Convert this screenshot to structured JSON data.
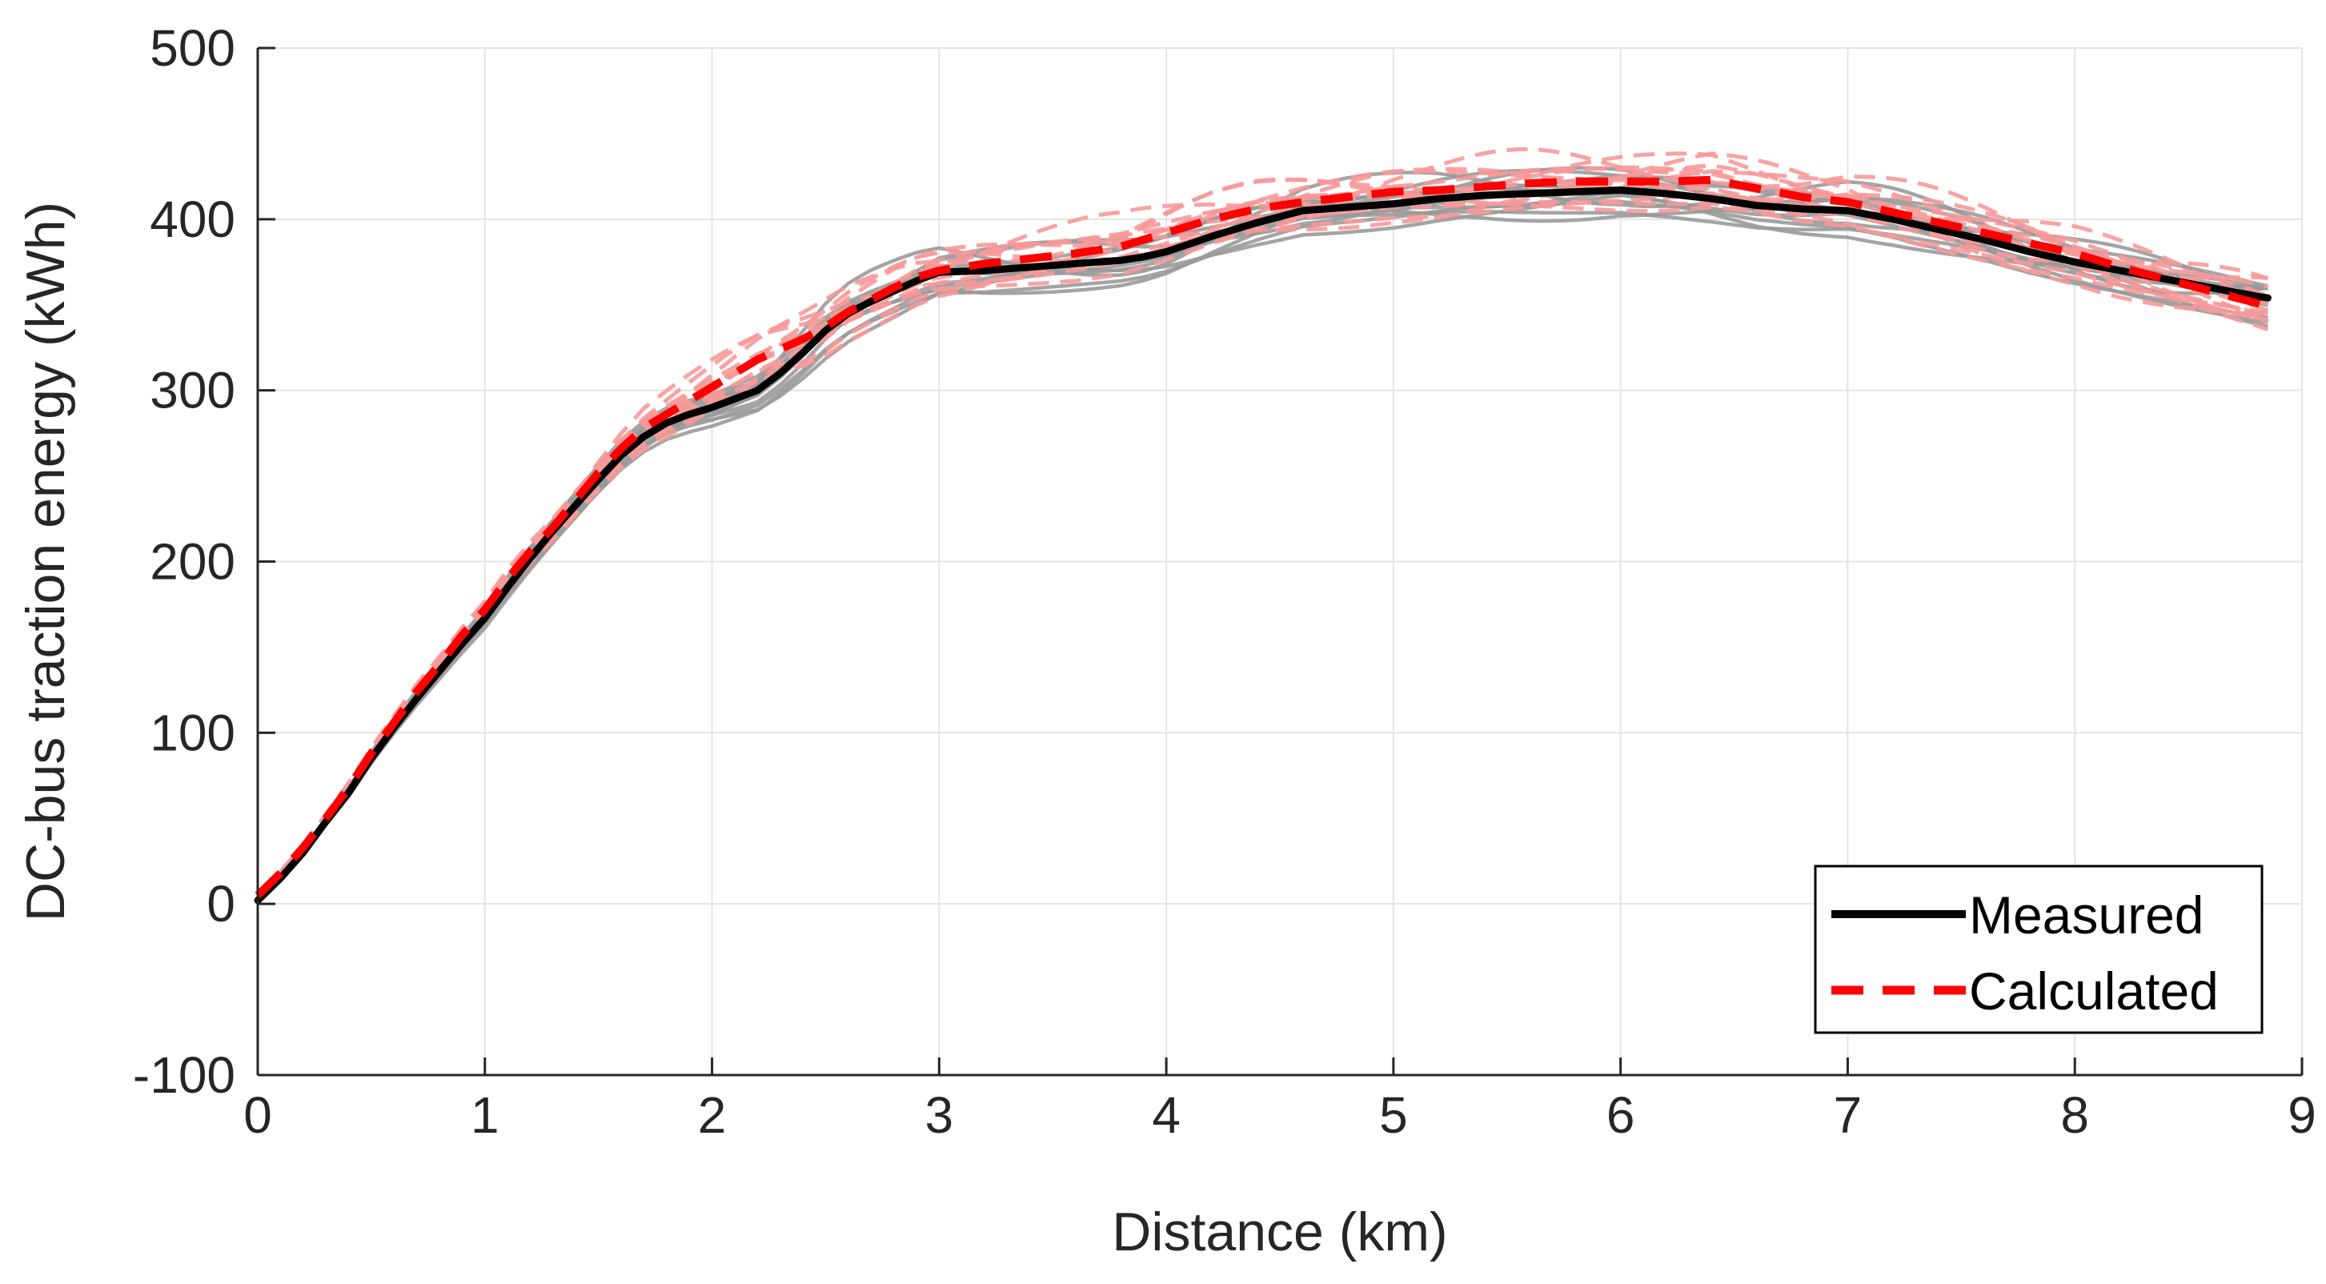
{
  "chart_data": {
    "type": "line",
    "xlabel": "Distance (km)",
    "ylabel": "DC-bus traction energy (kWh)",
    "xlim": [
      0,
      9
    ],
    "ylim": [
      -100,
      500
    ],
    "xticks": [
      0,
      1,
      2,
      3,
      4,
      5,
      6,
      7,
      8,
      9
    ],
    "yticks": [
      -100,
      0,
      100,
      200,
      300,
      400,
      500
    ],
    "grid": true,
    "legend_position": "bottom-right",
    "colors": {
      "measured": "#000000",
      "calculated": "#ff0000",
      "measured_runs": "#9a9a9a",
      "calculated_runs": "#f79999",
      "grid": "#e3e3e3",
      "axis": "#262626"
    },
    "series": [
      {
        "name": "Measured",
        "style": "solid",
        "x": [
          0,
          0.1,
          0.2,
          0.3,
          0.4,
          0.5,
          0.6,
          0.7,
          0.8,
          0.9,
          1.0,
          1.1,
          1.2,
          1.3,
          1.4,
          1.5,
          1.6,
          1.7,
          1.8,
          1.9,
          2.0,
          2.1,
          2.2,
          2.3,
          2.4,
          2.5,
          2.6,
          2.7,
          2.8,
          2.9,
          3.0,
          3.2,
          3.4,
          3.6,
          3.8,
          3.9,
          4.0,
          4.2,
          4.4,
          4.6,
          4.8,
          5.0,
          5.2,
          5.4,
          5.6,
          5.8,
          6.0,
          6.2,
          6.4,
          6.6,
          6.8,
          7.0,
          7.2,
          7.4,
          7.6,
          7.8,
          8.0,
          8.2,
          8.4,
          8.6,
          8.8,
          8.85
        ],
        "y": [
          2,
          15,
          30,
          48,
          65,
          85,
          103,
          120,
          136,
          152,
          167,
          185,
          202,
          218,
          233,
          248,
          262,
          273,
          281,
          286,
          290,
          295,
          300,
          310,
          322,
          335,
          345,
          352,
          358,
          364,
          369,
          370,
          372,
          374,
          376,
          378,
          381,
          390,
          398,
          405,
          407,
          409,
          412,
          414,
          415,
          416,
          417,
          415,
          412,
          408,
          406,
          405,
          400,
          394,
          388,
          381,
          375,
          370,
          365,
          360,
          355,
          354
        ]
      },
      {
        "name": "Calculated",
        "style": "dashed",
        "x": [
          0,
          0.1,
          0.2,
          0.3,
          0.4,
          0.5,
          0.6,
          0.7,
          0.8,
          0.9,
          1.0,
          1.1,
          1.2,
          1.3,
          1.4,
          1.5,
          1.6,
          1.7,
          1.8,
          1.9,
          2.0,
          2.1,
          2.2,
          2.3,
          2.4,
          2.5,
          2.6,
          2.7,
          2.8,
          2.9,
          3.0,
          3.2,
          3.4,
          3.6,
          3.8,
          4.0,
          4.2,
          4.4,
          4.6,
          4.8,
          5.0,
          5.2,
          5.4,
          5.6,
          5.8,
          6.0,
          6.2,
          6.4,
          6.6,
          6.8,
          7.0,
          7.2,
          7.4,
          7.6,
          7.8,
          8.0,
          8.2,
          8.4,
          8.6,
          8.8,
          8.85
        ],
        "y": [
          5,
          18,
          33,
          50,
          68,
          88,
          106,
          124,
          140,
          157,
          172,
          190,
          206,
          220,
          236,
          252,
          266,
          278,
          286,
          294,
          302,
          310,
          318,
          324,
          330,
          337,
          346,
          353,
          360,
          366,
          370,
          374,
          377,
          380,
          384,
          392,
          400,
          406,
          410,
          413,
          416,
          417,
          419,
          421,
          422,
          422,
          422,
          423,
          418,
          413,
          410,
          404,
          398,
          392,
          386,
          380,
          372,
          365,
          358,
          351,
          349
        ]
      }
    ]
  }
}
